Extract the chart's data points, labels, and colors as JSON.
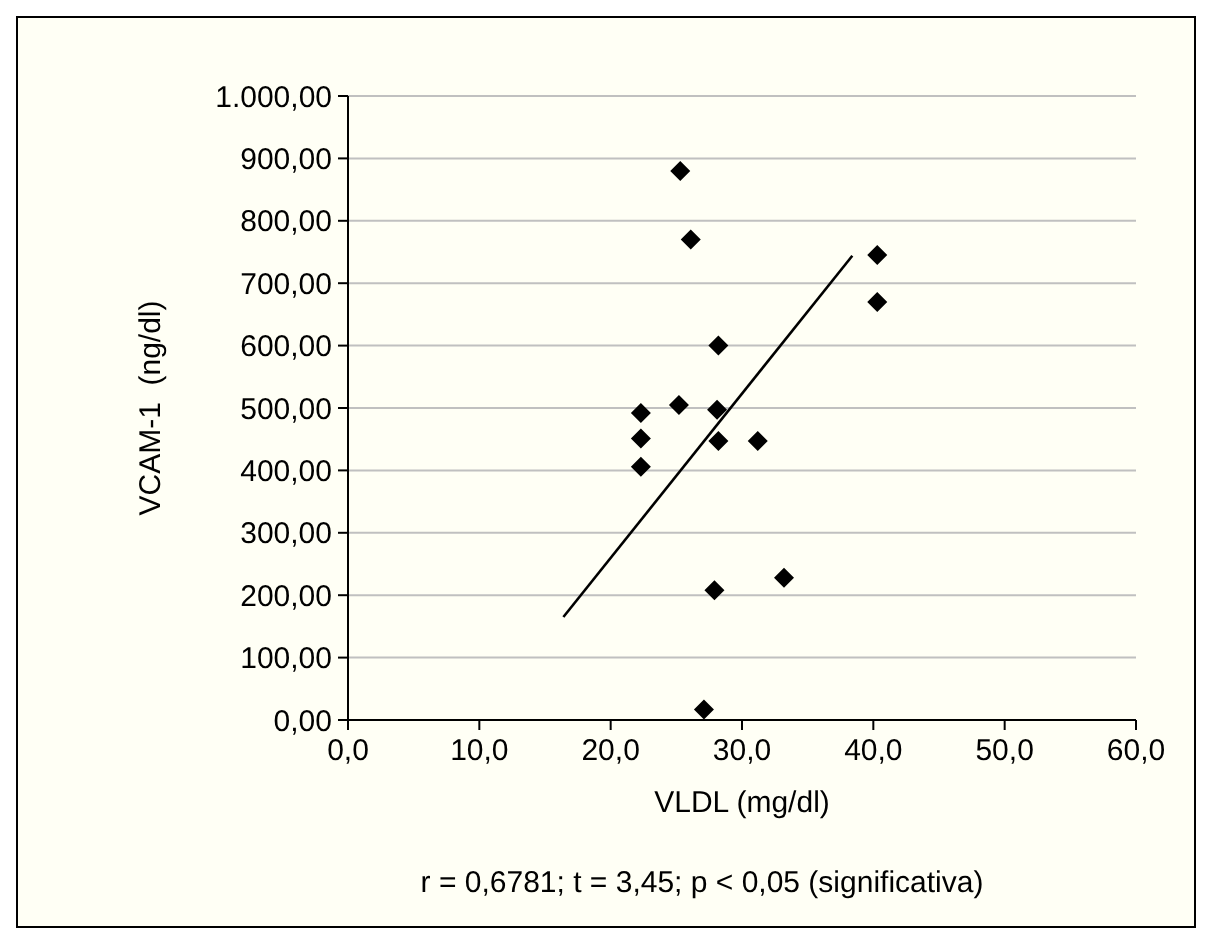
{
  "chart_data": {
    "type": "scatter",
    "xlabel": "VLDL (mg/dl)",
    "ylabel": "VCAM-1  (ng/dl)",
    "annotations": [
      "r = 0,6781; t = 3,45; p < 0,05 (significativa)"
    ],
    "xlim": [
      0,
      60
    ],
    "ylim": [
      0,
      1000
    ],
    "xticks": [
      {
        "value": 0,
        "label": "0,0"
      },
      {
        "value": 10,
        "label": "10,0"
      },
      {
        "value": 20,
        "label": "20,0"
      },
      {
        "value": 30,
        "label": "30,0"
      },
      {
        "value": 40,
        "label": "40,0"
      },
      {
        "value": 50,
        "label": "50,0"
      },
      {
        "value": 60,
        "label": "60,0"
      }
    ],
    "yticks": [
      {
        "value": 0,
        "label": "0,00"
      },
      {
        "value": 100,
        "label": "100,00"
      },
      {
        "value": 200,
        "label": "200,00"
      },
      {
        "value": 300,
        "label": "300,00"
      },
      {
        "value": 400,
        "label": "400,00"
      },
      {
        "value": 500,
        "label": "500,00"
      },
      {
        "value": 600,
        "label": "600,00"
      },
      {
        "value": 700,
        "label": "700,00"
      },
      {
        "value": 800,
        "label": "800,00"
      },
      {
        "value": 900,
        "label": "900,00"
      },
      {
        "value": 1000,
        "label": "1.000,00"
      }
    ],
    "grid": "y",
    "marker": "diamond",
    "series": [
      {
        "color": "#000000",
        "x": [
          25.3,
          26.1,
          40.3,
          40.3,
          28.2,
          22.3,
          25.2,
          28.1,
          22.3,
          28.2,
          31.2,
          22.3,
          27.9,
          33.2,
          27.1
        ],
        "values": [
          880,
          770,
          745,
          670,
          600,
          492,
          505,
          497,
          451,
          447,
          447,
          406,
          208,
          228,
          17
        ]
      },
      {
        "type": "line",
        "color": "#000000",
        "marker": "none",
        "line_style": "solid",
        "x": [
          16.4,
          38.4
        ],
        "values": [
          165,
          744
        ]
      }
    ]
  }
}
